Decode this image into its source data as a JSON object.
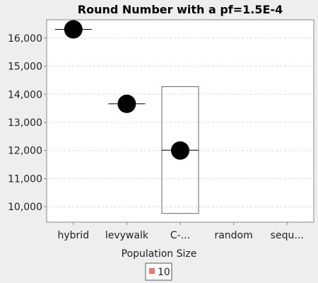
{
  "chart_data": {
    "type": "box",
    "title": "Round Number with a pf=1.5E-4",
    "xlabel": "Population Size",
    "ylabel": "",
    "categories": [
      "hybrid",
      "levywalk",
      "C-...",
      "random",
      "sequ..."
    ],
    "ylim": [
      9450,
      16650
    ],
    "yticks": [
      10000,
      11000,
      12000,
      13000,
      14000,
      15000,
      16000
    ],
    "ytick_labels": [
      "10,000",
      "11,000",
      "12,000",
      "13,000",
      "14,000",
      "15,000",
      "16,000"
    ],
    "grid": true,
    "legend": {
      "placement": "bottom-center",
      "entries": [
        {
          "label": "10",
          "color": "#e8776f"
        }
      ]
    },
    "boxes": [
      {
        "category": "hybrid",
        "mean": 16310,
        "median": 16310
      },
      {
        "category": "levywalk",
        "mean": 13660,
        "median": 13660
      },
      {
        "category": "C-...",
        "mean": 12000,
        "median": 12010,
        "q1": 9760,
        "q3": 14270
      }
    ]
  }
}
